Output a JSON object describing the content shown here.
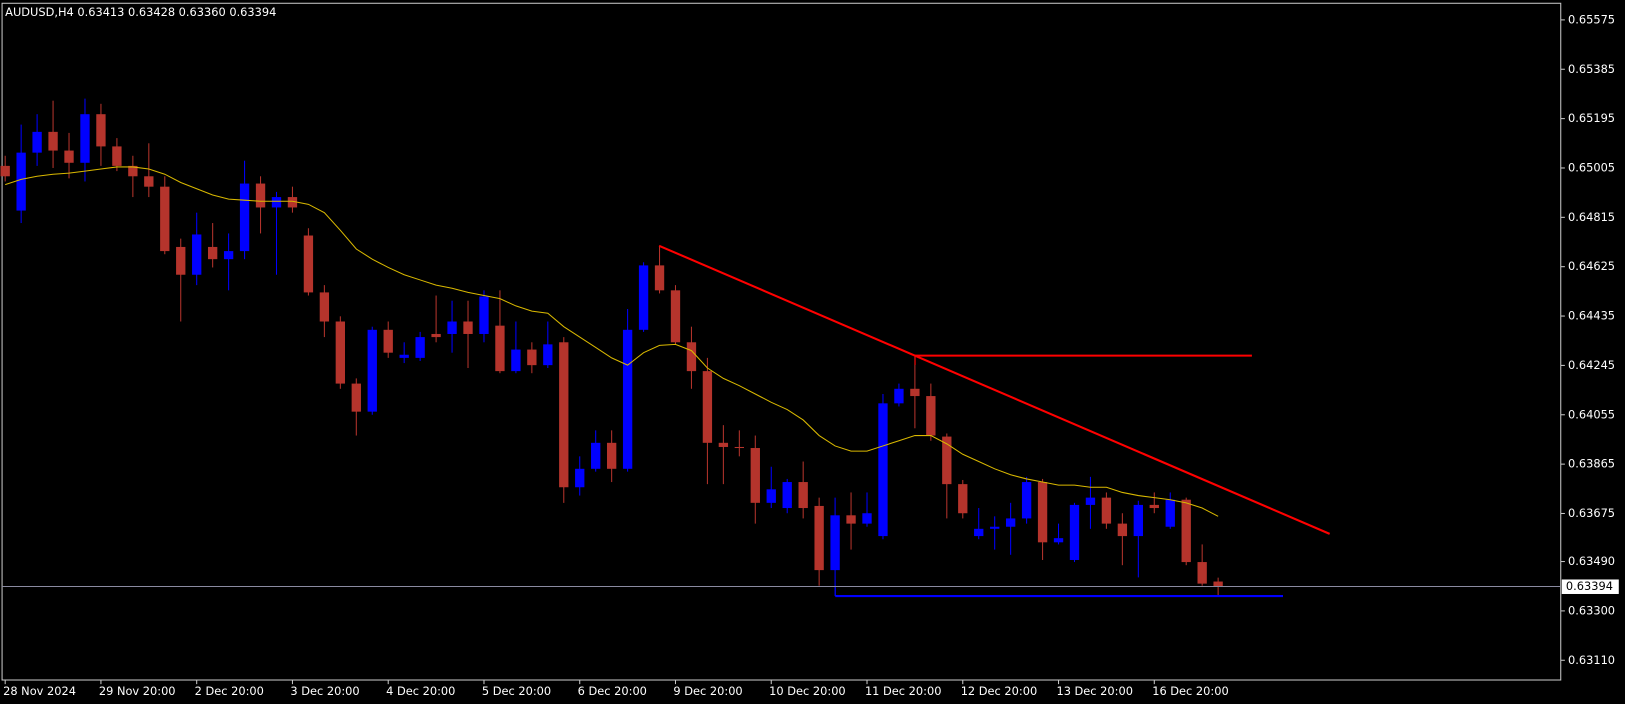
{
  "chart_data": {
    "type": "candlestick",
    "header": "AUDUSD,H4  0.63413 0.63428 0.63360 0.63394",
    "price_label": "0.63394",
    "up_color": "#0000ff",
    "down_color": "#b5342c",
    "categories": [
      "28 Nov 2024",
      null,
      null,
      null,
      null,
      null,
      "29 Nov 20:00",
      null,
      null,
      null,
      null,
      null,
      "2 Dec 20:00",
      null,
      null,
      null,
      null,
      null,
      "3 Dec 20:00",
      null,
      null,
      null,
      null,
      null,
      "4 Dec 20:00",
      null,
      null,
      null,
      null,
      null,
      "5 Dec 20:00",
      null,
      null,
      null,
      null,
      null,
      "6 Dec 20:00",
      null,
      null,
      null,
      null,
      null,
      "9 Dec 20:00",
      null,
      null,
      null,
      null,
      null,
      "10 Dec 20:00",
      null,
      null,
      null,
      null,
      null,
      "11 Dec 20:00",
      null,
      null,
      null,
      null,
      null,
      "12 Dec 20:00",
      null,
      null,
      null,
      null,
      null,
      "13 Dec 20:00",
      null,
      null,
      null,
      null,
      null,
      "16 Dec 20:00",
      null,
      null,
      null,
      null
    ],
    "open": [
      0.65013,
      0.64841,
      0.65064,
      0.65144,
      0.65072,
      0.65025,
      0.65212,
      0.65088,
      0.65013,
      0.64973,
      0.64933,
      0.64701,
      0.64594,
      0.64701,
      0.64654,
      0.64685,
      0.64945,
      0.64853,
      0.64893,
      0.64745,
      0.64526,
      0.64414,
      0.64175,
      0.64067,
      0.64382,
      0.64274,
      0.64274,
      0.64366,
      0.64366,
      0.64414,
      0.64366,
      0.64398,
      0.64223,
      0.64306,
      0.64246,
      0.64334,
      0.63776,
      0.63847,
      0.63947,
      0.63847,
      0.64382,
      0.6463,
      0.64534,
      0.64334,
      0.64223,
      0.63947,
      0.63931,
      0.63927,
      0.63716,
      0.63696,
      0.63796,
      0.63704,
      0.63457,
      0.63668,
      0.63636,
      0.63588,
      0.64099,
      0.64155,
      0.64127,
      0.63971,
      0.63788,
      0.63588,
      0.63616,
      0.63624,
      0.63656,
      0.63796,
      0.63564,
      0.63496,
      0.63708,
      0.63736,
      0.63636,
      0.63588,
      0.63708,
      0.63624,
      0.63728,
      0.63488,
      0.63413
    ],
    "high": [
      0.65052,
      0.65172,
      0.65212,
      0.65264,
      0.6514,
      0.65272,
      0.65252,
      0.6512,
      0.65052,
      0.651,
      0.64973,
      0.64733,
      0.64833,
      0.64793,
      0.64753,
      0.65033,
      0.64973,
      0.64913,
      0.64933,
      0.64773,
      0.64554,
      0.64434,
      0.64195,
      0.64394,
      0.64414,
      0.64334,
      0.64374,
      0.64514,
      0.64494,
      0.64494,
      0.64534,
      0.64534,
      0.64414,
      0.64334,
      0.64414,
      0.64354,
      0.63895,
      0.63995,
      0.63995,
      0.64462,
      0.64642,
      0.64701,
      0.64554,
      0.64394,
      0.64274,
      0.64015,
      0.63995,
      0.63975,
      0.63855,
      0.63808,
      0.63875,
      0.63736,
      0.63736,
      0.63756,
      0.63756,
      0.64135,
      0.64175,
      0.64282,
      0.64175,
      0.63983,
      0.63804,
      0.63696,
      0.63664,
      0.63716,
      0.63816,
      0.63808,
      0.63636,
      0.63716,
      0.63816,
      0.63756,
      0.63676,
      0.63724,
      0.63756,
      0.63756,
      0.63736,
      0.63556,
      0.63428
    ],
    "low": [
      0.64953,
      0.64793,
      0.65013,
      0.65005,
      0.64965,
      0.64953,
      0.65013,
      0.64993,
      0.64893,
      0.64893,
      0.64673,
      0.64414,
      0.64554,
      0.64622,
      0.64534,
      0.64654,
      0.64753,
      0.64594,
      0.64833,
      0.64514,
      0.64354,
      0.64155,
      0.63975,
      0.64055,
      0.64274,
      0.64254,
      0.64262,
      0.64334,
      0.64294,
      0.64235,
      0.64334,
      0.64215,
      0.64215,
      0.64215,
      0.64235,
      0.63716,
      0.63744,
      0.63836,
      0.63796,
      0.63836,
      0.64374,
      0.64522,
      0.64326,
      0.64155,
      0.63788,
      0.63788,
      0.63895,
      0.63636,
      0.63696,
      0.63676,
      0.63656,
      0.63397,
      0.63357,
      0.63536,
      0.63624,
      0.63576,
      0.64087,
      0.64003,
      0.63955,
      0.63656,
      0.63656,
      0.63576,
      0.63536,
      0.63516,
      0.63636,
      0.63496,
      0.63556,
      0.63488,
      0.63616,
      0.63616,
      0.63476,
      0.63429,
      0.63676,
      0.63616,
      0.63476,
      0.63397,
      0.6336
    ],
    "close": [
      0.64973,
      0.65064,
      0.65144,
      0.65072,
      0.65025,
      0.65212,
      0.65088,
      0.65013,
      0.64973,
      0.64933,
      0.64685,
      0.64594,
      0.64749,
      0.64654,
      0.64685,
      0.64945,
      0.64853,
      0.64893,
      0.64853,
      0.64526,
      0.64414,
      0.64175,
      0.64067,
      0.64382,
      0.64294,
      0.64286,
      0.64354,
      0.64354,
      0.64414,
      0.64366,
      0.6451,
      0.64223,
      0.64306,
      0.64246,
      0.64326,
      0.63776,
      0.63847,
      0.63947,
      0.63847,
      0.64382,
      0.6463,
      0.64534,
      0.64334,
      0.64223,
      0.63947,
      0.63931,
      0.63927,
      0.63716,
      0.63768,
      0.63796,
      0.63696,
      0.63457,
      0.63668,
      0.63636,
      0.63676,
      0.64099,
      0.64155,
      0.64127,
      0.63975,
      0.63788,
      0.63676,
      0.63616,
      0.63624,
      0.63656,
      0.63796,
      0.63564,
      0.6358,
      0.63708,
      0.63736,
      0.63636,
      0.63588,
      0.63708,
      0.63696,
      0.63728,
      0.63488,
      0.63405,
      0.63394
    ],
    "ma": {
      "color": "#d9b800",
      "values": [
        0.64941,
        0.64961,
        0.64973,
        0.64981,
        0.64985,
        0.64993,
        0.65001,
        0.65009,
        0.65009,
        0.65001,
        0.64981,
        0.64949,
        0.64925,
        0.64901,
        0.64885,
        0.64881,
        0.64877,
        0.64877,
        0.64877,
        0.64865,
        0.64833,
        0.64765,
        0.64693,
        0.64654,
        0.64622,
        0.64594,
        0.64574,
        0.64554,
        0.64542,
        0.64526,
        0.64514,
        0.64502,
        0.64474,
        0.64454,
        0.64446,
        0.64394,
        0.64354,
        0.64314,
        0.64274,
        0.64246,
        0.64294,
        0.64322,
        0.64326,
        0.64302,
        0.64235,
        0.64195,
        0.64167,
        0.64135,
        0.64103,
        0.64075,
        0.64035,
        0.63975,
        0.63935,
        0.63915,
        0.63915,
        0.63935,
        0.63955,
        0.63975,
        0.63975,
        0.63943,
        0.63903,
        0.63875,
        0.63847,
        0.63824,
        0.63808,
        0.63796,
        0.63784,
        0.63784,
        0.63776,
        0.63776,
        0.63756,
        0.63744,
        0.63736,
        0.63728,
        0.63716,
        0.63696,
        0.63664
      ]
    },
    "ylim": [
      0.63034,
      0.65639
    ],
    "yticks": [
      0.65575,
      0.65385,
      0.65195,
      0.65005,
      0.64815,
      0.64625,
      0.64435,
      0.64245,
      0.64055,
      0.63865,
      0.63675,
      {
        "value": 0.6349,
        "label": "0.63490"
      },
      {
        "value": 0.633,
        "label": "0.63300"
      },
      {
        "value": 0.6311,
        "label": "0.63110"
      }
    ]
  }
}
